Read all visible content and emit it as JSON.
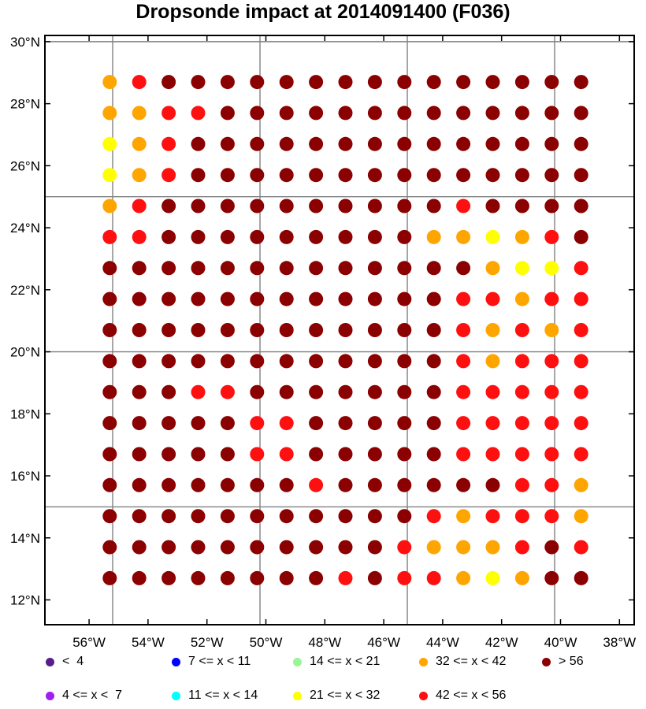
{
  "chart_data": {
    "type": "scatter",
    "title": "Dropsonde impact at 2014091400 (F036)",
    "xlim": [
      -57.5,
      -37.5
    ],
    "ylim": [
      11.2,
      30.2
    ],
    "x_ticks": [
      -56,
      -54,
      -52,
      -50,
      -48,
      -46,
      -44,
      -42,
      -40,
      -38
    ],
    "x_tick_labels": [
      "56°W",
      "54°W",
      "52°W",
      "50°W",
      "48°W",
      "46°W",
      "44°W",
      "42°W",
      "40°W",
      "38°W"
    ],
    "y_ticks": [
      12,
      14,
      16,
      18,
      20,
      22,
      24,
      26,
      28,
      30
    ],
    "y_tick_labels": [
      "12°N",
      "14°N",
      "16°N",
      "18°N",
      "20°N",
      "22°N",
      "24°N",
      "26°N",
      "28°N",
      "30°N"
    ],
    "grid_x": [
      -55.2,
      -50.2,
      -45.2,
      -40.2
    ],
    "grid_y": [
      15.0,
      20.0,
      25.0,
      30.0
    ],
    "points_lon": [
      -55.3,
      -54.3,
      -53.3,
      -52.3,
      -51.3,
      -50.3,
      -49.3,
      -48.3,
      -47.3,
      -46.3,
      -45.3,
      -44.3,
      -43.3,
      -42.3,
      -41.3,
      -40.3,
      -39.3
    ],
    "points_lat": [
      28.7,
      27.7,
      26.7,
      25.7,
      24.7,
      23.7,
      22.7,
      21.7,
      20.7,
      19.7,
      18.7,
      17.7,
      16.7,
      15.7,
      14.7,
      13.7,
      12.7
    ],
    "categories": [
      "lt4",
      "4to7",
      "7to11",
      "11to14",
      "14to21",
      "21to32",
      "32to42",
      "42to56",
      "gt56"
    ],
    "category_grid": [
      "OAXXXXXXXXXXXXXXX",
      "OORRXXXXXXXXXXXXX",
      "YORXXXXXXXXXXXXXX",
      "YORXXXXXXXXXXXXXX",
      "ORXXXXXXXXXXRXXXX",
      "RRXXXXXXXXXOOYORX",
      "XXXXXXXXXXXXXOYYR",
      "XXXXXXXXXXXXRRORR",
      "XXXXXXXXXXXXROROR",
      "XXXXXXXXXXXXRORRR",
      "XXXRRXXXXXXXRRRRR",
      "XXXXXRRXXXXXRRRRR",
      "XXXXXRRXXXXXRRRRR",
      "XXXXXXXRXXXXXXRRO",
      "XXXXXXXXXXXRORRRO",
      "XXXXXXXXXXROOORXR",
      "XXXXXXXXRXRROYOXX"
    ],
    "legend": [
      {
        "key": "lt4",
        "label": "<  4",
        "color": "#5a1e8c"
      },
      {
        "key": "4to7",
        "label": "4 <= x <  7",
        "color": "#a020f0"
      },
      {
        "key": "7to11",
        "label": "7 <= x < 11",
        "color": "#0000ff"
      },
      {
        "key": "11to14",
        "label": "11 <= x < 14",
        "color": "#00ffff"
      },
      {
        "key": "14to21",
        "label": "14 <= x < 21",
        "color": "#98f598"
      },
      {
        "key": "21to32",
        "label": "21 <= x < 32",
        "color": "#ffff00"
      },
      {
        "key": "32to42",
        "label": "32 <= x < 42",
        "color": "#ffa500"
      },
      {
        "key": "42to56",
        "label": "42 <= x < 56",
        "color": "#ff1010"
      },
      {
        "key": "gt56",
        "label": "> 56",
        "color": "#8b0000"
      }
    ],
    "code_map": {
      "X": "gt56",
      "R": "42to56",
      "O": "32to42",
      "Y": "21to32",
      "A": "42to56"
    }
  }
}
